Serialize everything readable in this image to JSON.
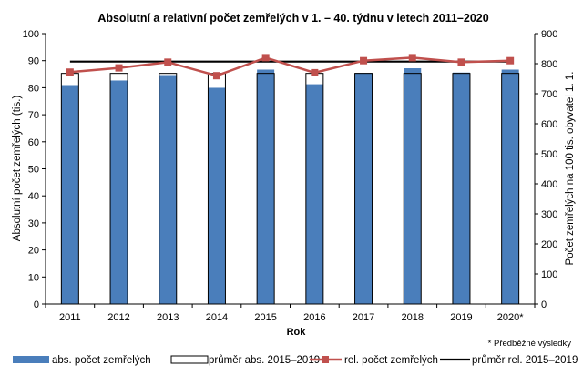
{
  "chart_data": {
    "type": "bar",
    "title": "Absolutní a relativní počet zemřelých v 1. – 40. týdnu v letech 2011–2020",
    "xlabel": "Rok",
    "ylabel": "Absolutní počet zemřelých (tis.)",
    "y2label": "Počet zemřelých na 100 tis. obyvatel 1. 1.",
    "categories": [
      "2011",
      "2012",
      "2013",
      "2014",
      "2015",
      "2016",
      "2017",
      "2018",
      "2019",
      "2020*"
    ],
    "ylim": [
      0,
      100
    ],
    "yticks": [
      0,
      10,
      20,
      30,
      40,
      50,
      60,
      70,
      80,
      90,
      100
    ],
    "y2lim": [
      0,
      900
    ],
    "y2ticks": [
      0,
      100,
      200,
      300,
      400,
      500,
      600,
      700,
      800,
      900
    ],
    "grid": false,
    "legend_position": "bottom",
    "footnote": "* Předběžné výsledky",
    "colors": {
      "bar": "#4a7ebb",
      "avg_outline": "#000000",
      "rel_line": "#c0504d",
      "avg_rel_line": "#000000"
    },
    "series": [
      {
        "name": "abs. počet zemřelých",
        "kind": "bar",
        "axis": "left",
        "values": [
          81.0,
          82.7,
          84.7,
          80.0,
          86.7,
          81.3,
          85.5,
          87.2,
          85.6,
          86.7
        ]
      },
      {
        "name": "průměr abs. 2015–2019",
        "kind": "bar-outline",
        "axis": "left",
        "values": [
          85.3,
          85.3,
          85.3,
          85.3,
          85.3,
          85.3,
          85.3,
          85.3,
          85.3,
          85.3
        ]
      },
      {
        "name": "rel. počet zemřelých",
        "kind": "line",
        "axis": "right",
        "values": [
          772,
          786,
          805,
          760,
          820,
          770,
          810,
          820,
          805,
          810
        ]
      },
      {
        "name": "průměr rel. 2015–2019",
        "kind": "line",
        "axis": "right",
        "values": [
          807,
          807,
          807,
          807,
          807,
          807,
          807,
          807,
          807,
          807
        ]
      }
    ]
  }
}
